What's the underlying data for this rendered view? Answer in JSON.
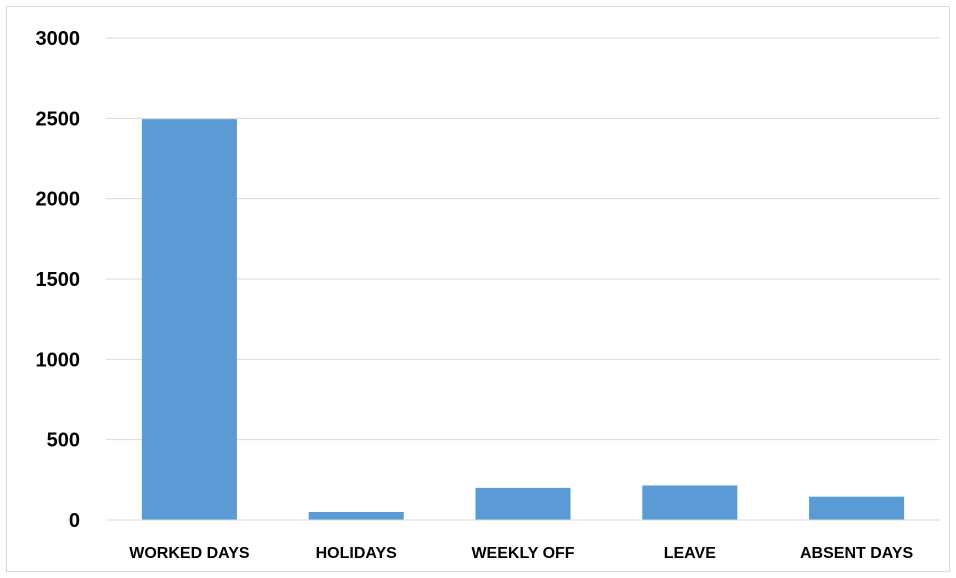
{
  "chart_data": {
    "type": "bar",
    "categories": [
      "WORKED DAYS",
      "HOLIDAYS",
      "WEEKLY OFF",
      "LEAVE",
      "ABSENT DAYS"
    ],
    "values": [
      2495,
      50,
      200,
      215,
      145
    ],
    "title": "",
    "xlabel": "",
    "ylabel": "",
    "ylim": [
      0,
      3000
    ],
    "yticks": [
      0,
      500,
      1000,
      1500,
      2000,
      2500,
      3000
    ],
    "grid": true,
    "legend": "none",
    "bar_color": "#5b9bd5",
    "grid_color": "#d9d9d9"
  }
}
